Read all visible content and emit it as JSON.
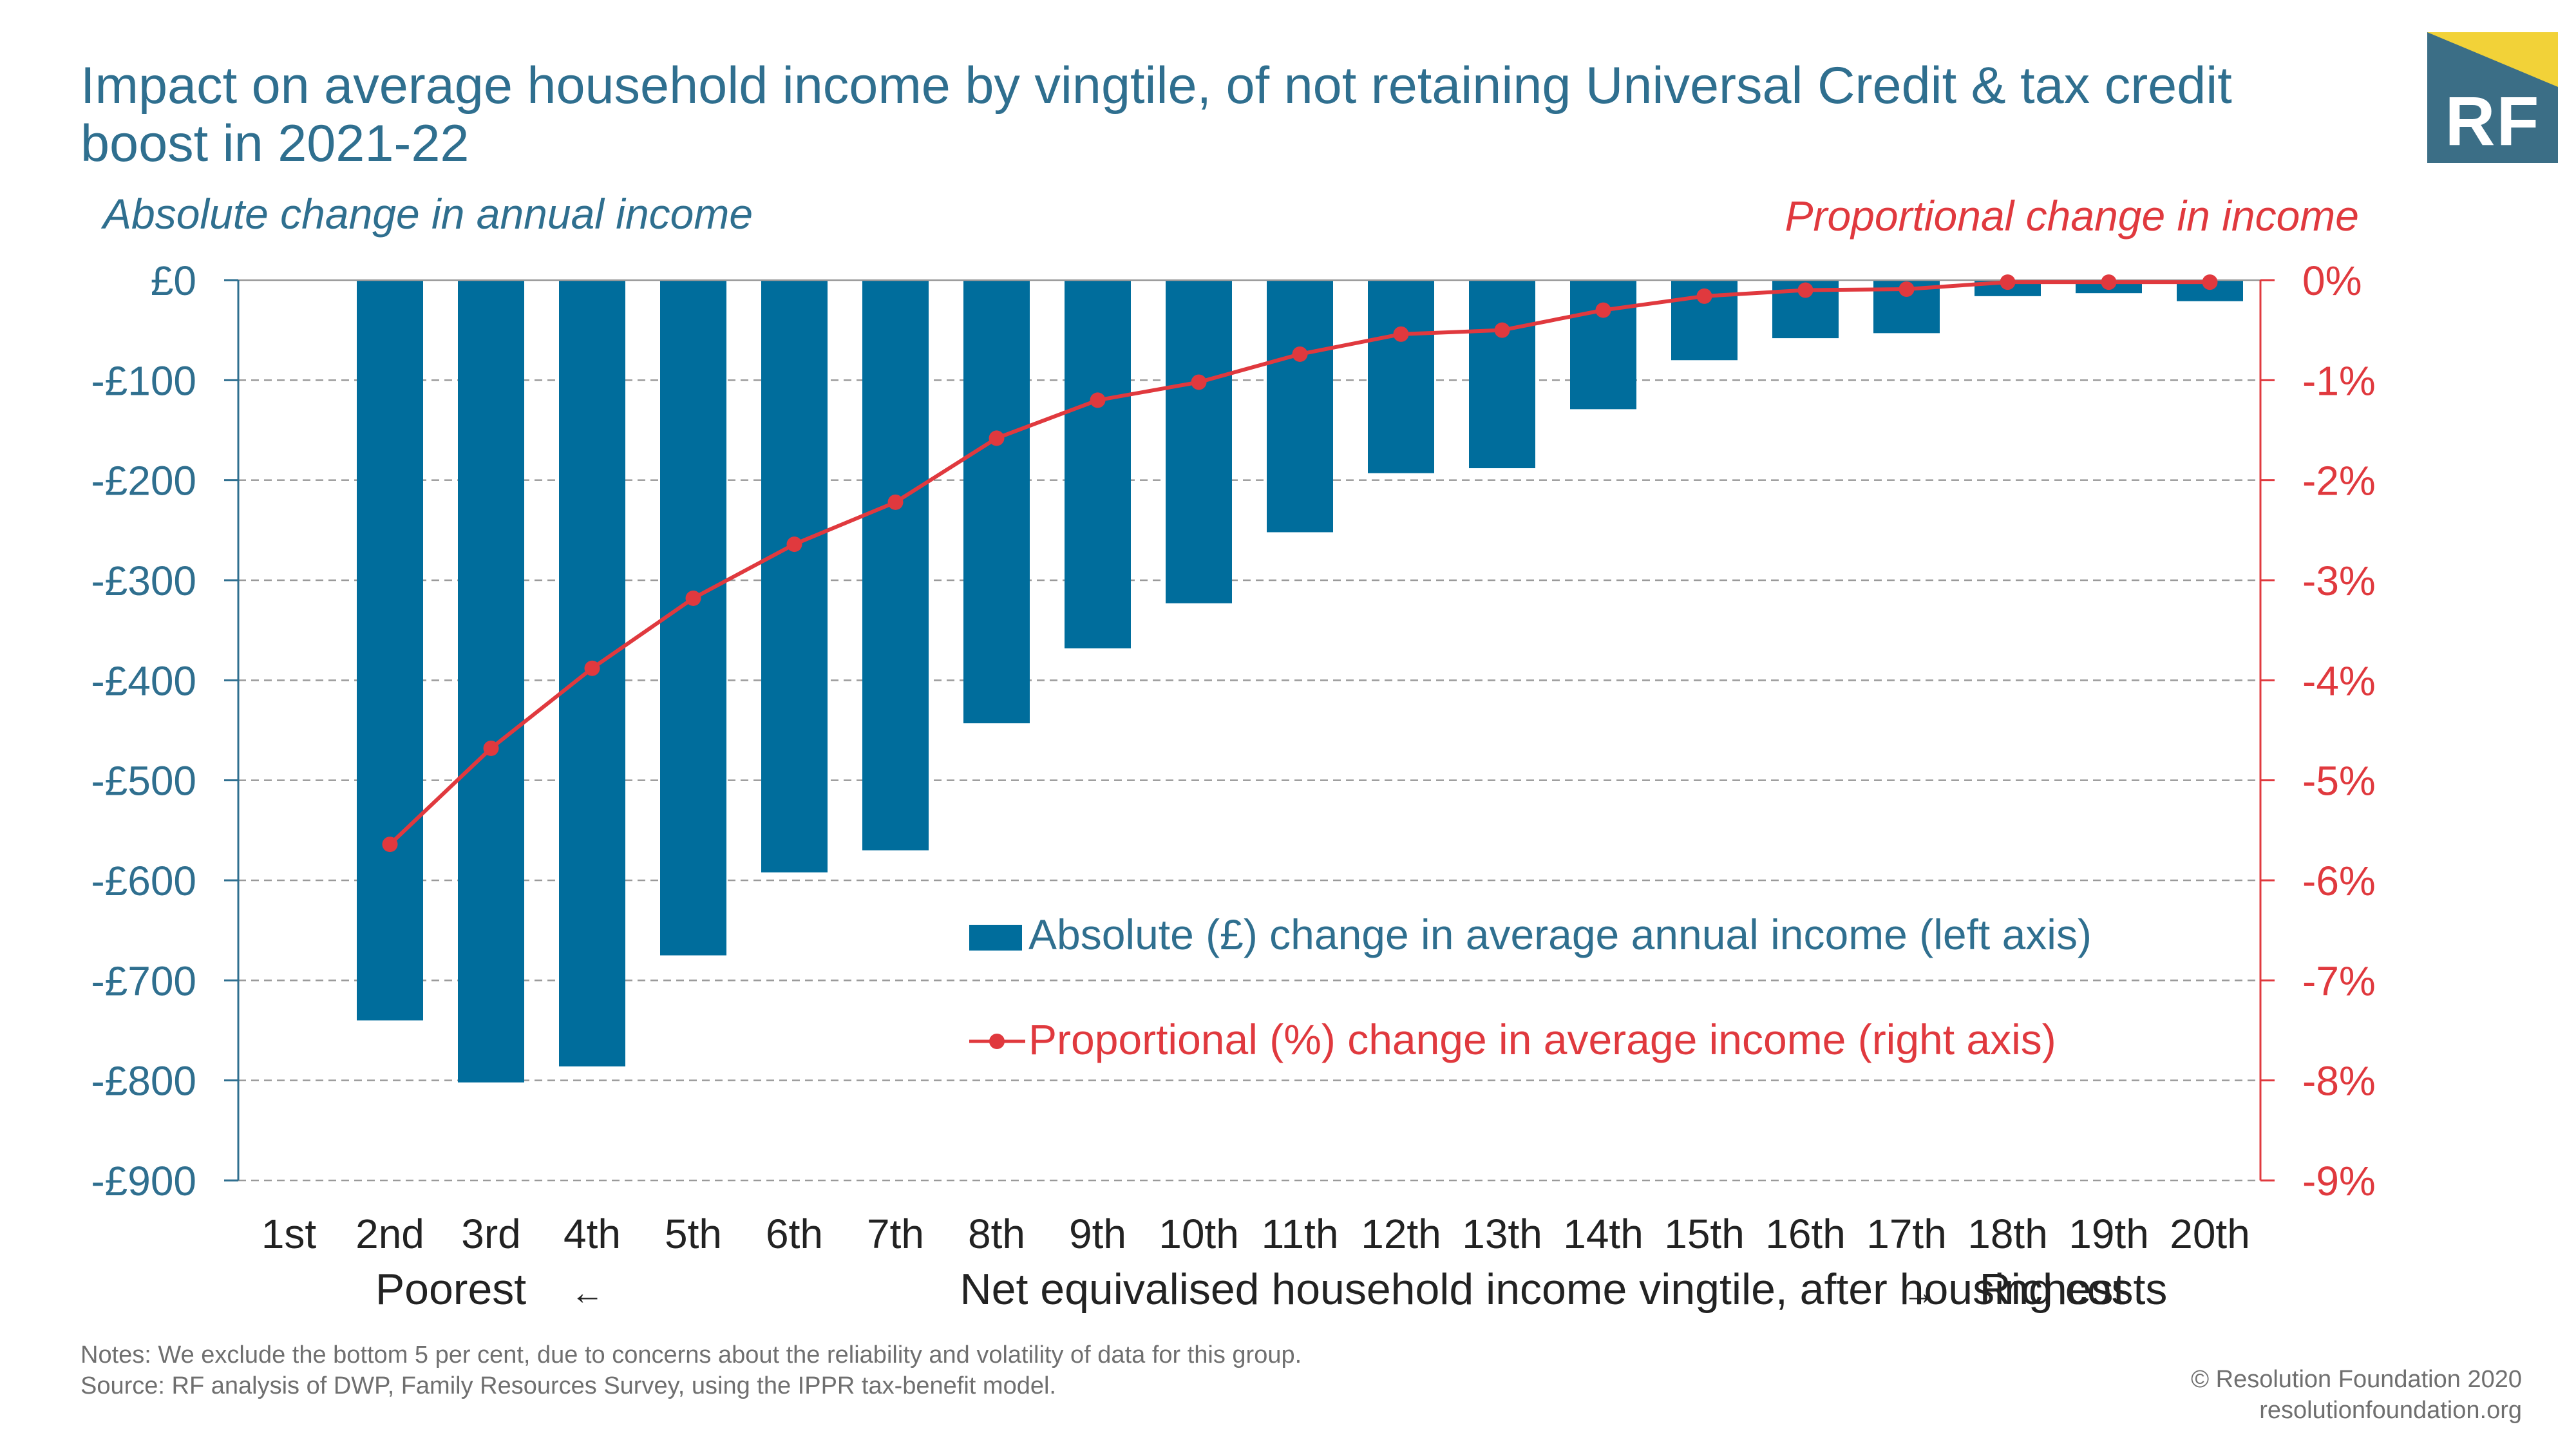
{
  "header": {
    "title": "Impact on average household income by vingtile, of not retaining Universal Credit & tax credit boost in 2021-22",
    "logo_text": "RF"
  },
  "chart_data": {
    "type": "bar+line",
    "left_axis_title": "Absolute change in annual income",
    "right_axis_title": "Proportional change in income",
    "categories": [
      "1st",
      "2nd",
      "3rd",
      "4th",
      "5th",
      "6th",
      "7th",
      "8th",
      "9th",
      "10th",
      "11th",
      "12th",
      "13th",
      "14th",
      "15th",
      "16th",
      "17th",
      "18th",
      "19th",
      "20th"
    ],
    "xlabel_parts": [
      "Poorest",
      "←",
      "Net equivalised household income vingtile, after housing costs",
      "→",
      "Richest"
    ],
    "left_ylim": [
      -900,
      0
    ],
    "left_ticks": [
      0,
      -100,
      -200,
      -300,
      -400,
      -500,
      -600,
      -700,
      -800,
      -900
    ],
    "left_tick_labels": [
      "£0",
      "-£100",
      "-£200",
      "-£300",
      "-£400",
      "-£500",
      "-£600",
      "-£700",
      "-£800",
      "-£900"
    ],
    "right_ylim": [
      -9,
      0
    ],
    "right_tick_labels": [
      "0%",
      "-1%",
      "-2%",
      "-3%",
      "-4%",
      "-5%",
      "-6%",
      "-7%",
      "-8%",
      "-9%"
    ],
    "grid": "horizontal dashed",
    "series": [
      {
        "name": "Absolute (£) change in average annual income (left axis)",
        "type": "bar",
        "axis": "left",
        "color": "#006d9c",
        "values": [
          null,
          -740,
          -802,
          -786,
          -675,
          -592,
          -570,
          -443,
          -368,
          -323,
          -252,
          -193,
          -188,
          -129,
          -80,
          -58,
          -53,
          -16,
          -13,
          -21
        ]
      },
      {
        "name": "Proportional (%) change in average income (right axis)",
        "type": "line",
        "axis": "right",
        "color": "#e0393e",
        "values": [
          null,
          -5.64,
          -4.68,
          -3.88,
          -3.18,
          -2.64,
          -2.22,
          -1.58,
          -1.2,
          -1.02,
          -0.74,
          -0.54,
          -0.5,
          -0.3,
          -0.16,
          -0.1,
          -0.09,
          -0.02,
          -0.02,
          -0.02
        ]
      }
    ],
    "legend_position": "lower-right inside plot"
  },
  "footer": {
    "notes": "Notes: We exclude the bottom 5 per cent, due to concerns about the reliability and volatility of data for this group.",
    "source": "Source: RF analysis of DWP, Family Resources Survey, using the IPPR tax-benefit model.",
    "copyright": "© Resolution Foundation 2020",
    "website": "resolutionfoundation.org"
  },
  "colors": {
    "title": "#2f6f8f",
    "left_axis": "#2f6f8f",
    "right_axis": "#e0393e",
    "bar": "#006d9c",
    "line": "#e0393e",
    "grid": "#9a9a9a",
    "logo_bg": "#3b6e86",
    "logo_accent": "#f2d238"
  }
}
